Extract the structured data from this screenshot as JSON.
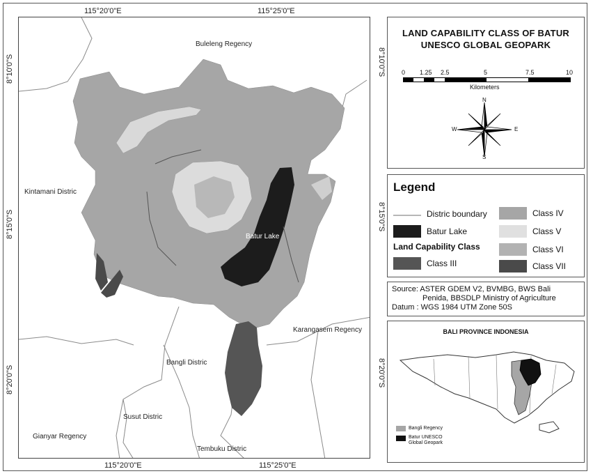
{
  "map": {
    "coordinates": {
      "top_left": "115°20'0\"E",
      "top_right": "115°25'0\"E",
      "bottom_left": "115°20'0\"E",
      "bottom_right": "115°25'0\"E",
      "left_upper": "8°10'0\"S",
      "left_middle": "8°15'0\"S",
      "left_lower": "8°20'0\"S",
      "right_upper": "8°10'0\"S",
      "right_middle": "8°15'0\"S",
      "right_lower": "8°20'0\"S"
    },
    "labels": {
      "buleleng": "Buleleng Regency",
      "kintamani": "Kintamani Distric",
      "batur_lake": "Batur Lake",
      "karangasem": "Karangasem Regency",
      "bangli": "Bangli Distric",
      "susut": "Susut Distric",
      "gianyar": "Gianyar Regency",
      "tembuku": "Tembuku Distric"
    }
  },
  "title": "LAND CAPABILITY CLASS OF BATUR UNESCO GLOBAL GEOPARK",
  "scale_bar": {
    "ticks": [
      "0",
      "1.25",
      "2.5",
      "5",
      "7.5",
      "10"
    ],
    "unit": "Kilometers"
  },
  "compass": {
    "n": "N",
    "s": "S",
    "e": "E",
    "w": "W"
  },
  "legend": {
    "heading": "Legend",
    "boundary": "Distric boundary",
    "lake": "Batur Lake",
    "section": "Land Capability Class",
    "class3": "Class III",
    "class4": "Class IV",
    "class5": "Class V",
    "class6": "Class VI",
    "class7": "Class VII"
  },
  "source": {
    "line1": "Source: ASTER GDEM V2, BVMBG, BWS Bali",
    "line2": "Penida, BBSDLP Ministry of Agriculture",
    "line3": "Datum : WGS 1984  UTM Zone 50S"
  },
  "inset": {
    "title": "BALI PROVINCE INDONESIA",
    "legend_bangli": "Bangli Regency",
    "legend_geopark_1": "Batur UNESCO",
    "legend_geopark_2": "Global Geopark"
  },
  "colors": {
    "class3": "#555555",
    "class4": "#a6a6a6",
    "class5": "#e0e0e0",
    "class6": "#b2b2b2",
    "class7": "#4a4a4a",
    "lake": "#1c1c1c",
    "boundary": "#8a8a8a"
  }
}
